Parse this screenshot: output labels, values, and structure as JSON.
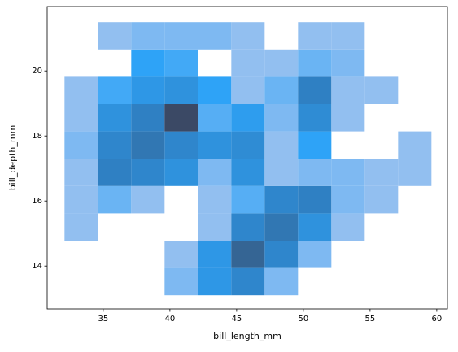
{
  "chart_data": {
    "type": "hist2d",
    "xlabel": "bill_length_mm",
    "ylabel": "bill_depth_mm",
    "xbins": [
      32.1,
      34.6,
      37.1,
      39.6,
      42.1,
      44.6,
      47.1,
      49.6,
      52.1,
      54.6,
      57.1,
      59.6
    ],
    "ybins": [
      13.1,
      13.94,
      14.78,
      15.62,
      16.46,
      17.3,
      18.14,
      18.98,
      19.82,
      20.66,
      21.5
    ],
    "counts": [
      [
        0,
        0,
        0,
        2,
        8,
        11,
        2,
        0,
        0,
        0,
        0
      ],
      [
        0,
        0,
        0,
        1,
        8,
        15,
        11,
        2,
        0,
        0,
        0
      ],
      [
        1,
        0,
        0,
        0,
        1,
        11,
        13,
        9,
        1,
        0,
        0
      ],
      [
        1,
        3,
        1,
        0,
        1,
        4,
        11,
        12,
        2,
        1,
        0
      ],
      [
        1,
        12,
        11,
        9,
        2,
        9,
        1,
        2,
        2,
        1,
        1
      ],
      [
        2,
        11,
        13,
        11,
        9,
        10,
        1,
        6,
        0,
        0,
        1
      ],
      [
        1,
        9,
        12,
        18,
        4,
        7,
        2,
        10,
        1,
        0,
        0
      ],
      [
        1,
        5,
        8,
        9,
        6,
        1,
        3,
        12,
        1,
        1,
        0
      ],
      [
        0,
        0,
        6,
        5,
        0,
        1,
        1,
        3,
        2,
        0,
        0
      ],
      [
        0,
        1,
        2,
        2,
        2,
        1,
        0,
        1,
        1,
        0,
        0
      ]
    ],
    "colormap": [
      "#a6c4ef",
      "#2ea3f7",
      "#2f80c3",
      "#3b4965"
    ],
    "xlim": [
      30.8,
      60.8
    ],
    "ylim": [
      12.68,
      21.98
    ],
    "xticks": [
      35,
      40,
      45,
      50,
      55,
      60
    ],
    "yticks": [
      14,
      16,
      18,
      20
    ]
  }
}
